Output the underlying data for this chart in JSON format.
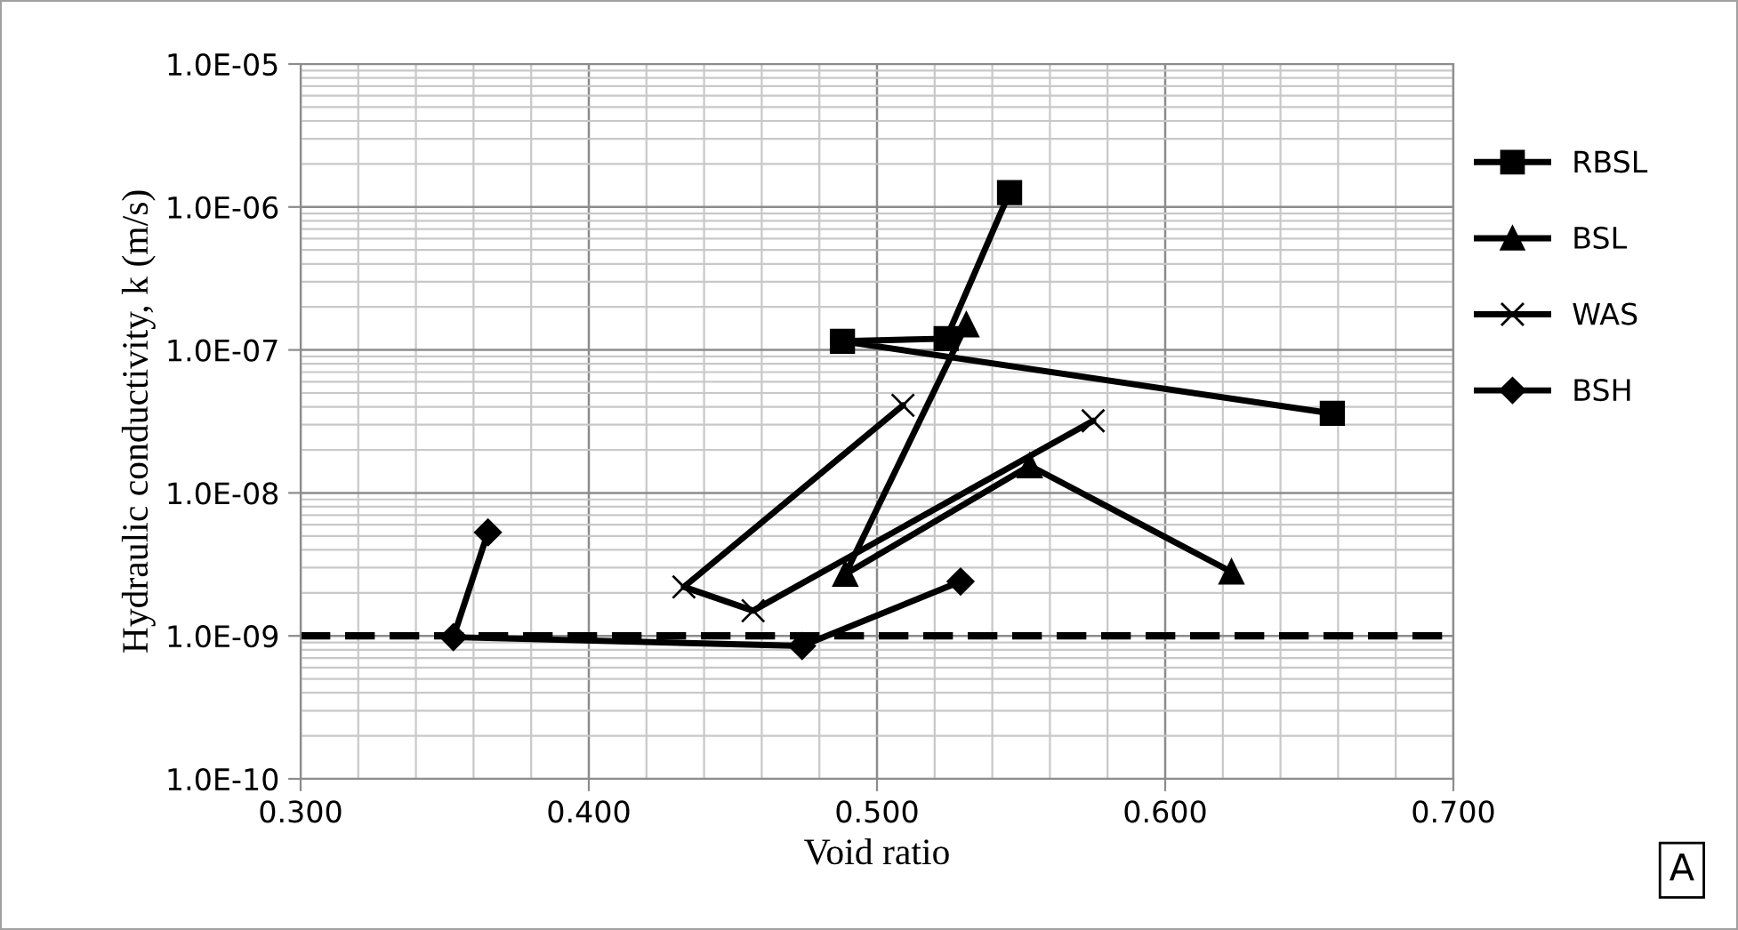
{
  "chart_data": {
    "type": "line",
    "xlabel": "Void ratio",
    "ylabel": "Hydraulic conductivity, k (m/s)",
    "log": "y",
    "grid": true,
    "legend": "right",
    "line_style": "solid",
    "xlim": [
      0.3,
      0.7
    ],
    "xticks": [
      {
        "value": 0.3,
        "label": "0.300"
      },
      {
        "value": 0.4,
        "label": "0.400"
      },
      {
        "value": 0.5,
        "label": "0.500"
      },
      {
        "value": 0.6,
        "label": "0.600"
      },
      {
        "value": 0.7,
        "label": "0.700"
      }
    ],
    "ylim": [
      1e-10,
      1e-05
    ],
    "yticks": [
      {
        "value": 1e-10,
        "label": "1.0E-10"
      },
      {
        "value": 1e-09,
        "label": "1.0E-09"
      },
      {
        "value": 1e-08,
        "label": "1.0E-08"
      },
      {
        "value": 1e-07,
        "label": "1.0E-07"
      },
      {
        "value": 1e-06,
        "label": "1.0E-06"
      },
      {
        "value": 1e-05,
        "label": "1.0E-05"
      }
    ],
    "series": [
      {
        "name": "RBSL",
        "color": "#000000",
        "marker": "square",
        "x": [
          0.546,
          0.524,
          0.488,
          0.658
        ],
        "values": [
          1.26e-06,
          1.2e-07,
          1.15e-07,
          3.6e-08
        ]
      },
      {
        "name": "BSL",
        "color": "#000000",
        "marker": "triangle",
        "x": [
          0.531,
          0.489,
          0.553,
          0.623
        ],
        "values": [
          1.5e-07,
          2.7e-09,
          1.55e-08,
          2.8e-09
        ]
      },
      {
        "name": "WAS",
        "color": "#000000",
        "marker": "cross",
        "x": [
          0.509,
          0.433,
          0.457,
          0.575
        ],
        "values": [
          4.1e-08,
          2.2e-09,
          1.5e-09,
          3.2e-08
        ]
      },
      {
        "name": "BSH",
        "color": "#000000",
        "marker": "diamond",
        "x": [
          0.365,
          0.353,
          0.474,
          0.529
        ],
        "values": [
          5.3e-09,
          9.8e-10,
          8.5e-10,
          2.4e-09
        ]
      }
    ],
    "ref_lines": [
      {
        "axis": "y",
        "value": 1e-09,
        "color": "#000000",
        "line_style": "dashed"
      }
    ],
    "annotations": [
      "A"
    ]
  }
}
